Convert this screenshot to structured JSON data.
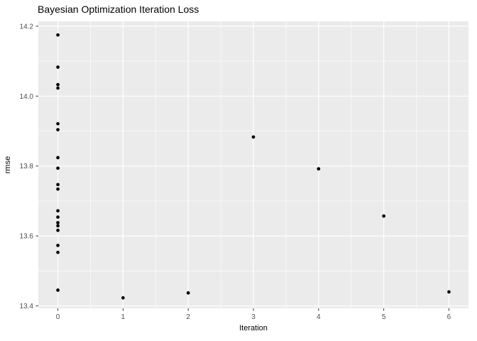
{
  "chart_data": {
    "type": "scatter",
    "title": "Bayesian Optimization Iteration Loss",
    "xlabel": "Iteration",
    "ylabel": "rmse",
    "xlim": [
      -0.3,
      6.3
    ],
    "ylim": [
      13.393,
      14.214
    ],
    "x_ticks": [
      0,
      1,
      2,
      3,
      4,
      5,
      6
    ],
    "x_tick_labels": [
      "0",
      "1",
      "2",
      "3",
      "4",
      "5",
      "6"
    ],
    "y_ticks": [
      14.2,
      14.0,
      13.8,
      13.6,
      13.4
    ],
    "y_tick_labels": [
      "14.2",
      "14.0",
      "13.8",
      "13.6",
      "13.4"
    ],
    "x_minor_breaks": [
      0.5,
      1.5,
      2.5,
      3.5,
      4.5,
      5.5
    ],
    "y_minor_breaks": [
      14.1,
      13.9,
      13.7,
      13.5
    ],
    "grid": "major-and-minor",
    "legend": "none",
    "points": [
      {
        "x": 0,
        "y": 14.175
      },
      {
        "x": 0,
        "y": 14.083
      },
      {
        "x": 0,
        "y": 14.033
      },
      {
        "x": 0,
        "y": 14.023
      },
      {
        "x": 0,
        "y": 13.921
      },
      {
        "x": 0,
        "y": 13.904
      },
      {
        "x": 0,
        "y": 13.824
      },
      {
        "x": 0,
        "y": 13.794
      },
      {
        "x": 0,
        "y": 13.747
      },
      {
        "x": 0,
        "y": 13.734
      },
      {
        "x": 0,
        "y": 13.672
      },
      {
        "x": 0,
        "y": 13.654
      },
      {
        "x": 0,
        "y": 13.638
      },
      {
        "x": 0,
        "y": 13.629
      },
      {
        "x": 0,
        "y": 13.616
      },
      {
        "x": 0,
        "y": 13.573
      },
      {
        "x": 0,
        "y": 13.553
      },
      {
        "x": 0,
        "y": 13.445
      },
      {
        "x": 1,
        "y": 13.423
      },
      {
        "x": 2,
        "y": 13.437
      },
      {
        "x": 3,
        "y": 13.883
      },
      {
        "x": 4,
        "y": 13.792
      },
      {
        "x": 5,
        "y": 13.657
      },
      {
        "x": 6,
        "y": 13.44
      }
    ],
    "colors": {
      "figure_bg": "#FFFFFF",
      "panel_bg": "#EBEBEB",
      "grid": "#FFFFFF",
      "point": "#000000",
      "tick_text": "#4D4D4D",
      "tick_mark": "#333333",
      "title_text": "#000000"
    }
  }
}
